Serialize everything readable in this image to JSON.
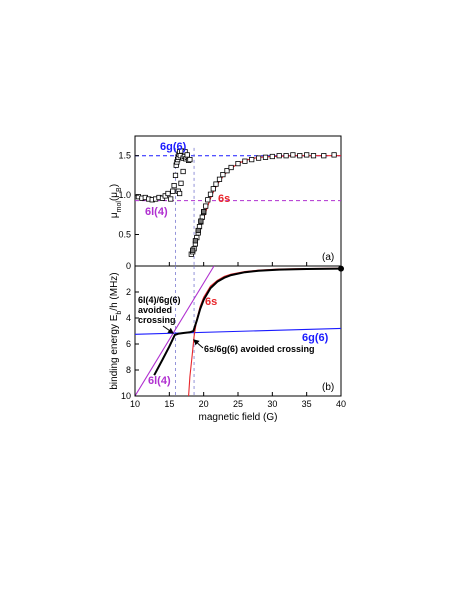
{
  "chart_data": [
    {
      "type": "scatter",
      "panel_label": "(a)",
      "ylabel_main": "μ",
      "ylabel_sub": "mol",
      "ylabel_unit": "(μ",
      "ylabel_unit_sub": "B",
      "ylabel_close": ")",
      "xlim": [
        10,
        40
      ],
      "ylim": [
        0.1,
        1.75
      ],
      "xticks": [
        10,
        15,
        20,
        25,
        30,
        35,
        40
      ],
      "yticks": [
        0.5,
        1.0,
        1.5
      ],
      "ytick_labels": [
        "0.5",
        "1.0",
        "1.5"
      ],
      "reference_lines": [
        {
          "label": "6g(6)",
          "y": 1.5,
          "color": "#1a1aff"
        },
        {
          "label": "6l(4)",
          "y": 0.93,
          "color": "#b030d0"
        }
      ],
      "vlines_x": [
        15.9,
        18.6
      ],
      "fit_curve": {
        "color": "#e8252a",
        "x": [
          18.1,
          18.3,
          18.6,
          19.0,
          19.5,
          20.0,
          20.5,
          21.0,
          21.5,
          22.0,
          23.0,
          24.0,
          25.0,
          26.0,
          27.0,
          28.0,
          30.0,
          33.0,
          36.0,
          40.0
        ],
        "y": [
          0.22,
          0.26,
          0.34,
          0.45,
          0.58,
          0.71,
          0.84,
          0.96,
          1.06,
          1.14,
          1.26,
          1.34,
          1.4,
          1.44,
          1.46,
          1.48,
          1.49,
          1.5,
          1.5,
          1.5
        ]
      },
      "series": [
        {
          "name": "6l(4)",
          "marker": "square-open",
          "x": [
            10.5,
            11.0,
            11.5,
            12.0,
            12.5,
            13.0,
            13.5,
            14.0,
            14.4,
            14.8,
            15.2,
            15.5,
            15.7,
            15.9,
            16.0,
            16.1,
            16.2,
            16.3,
            16.4,
            16.5,
            16.6,
            16.8,
            17.0,
            17.2,
            17.4,
            17.6,
            17.8,
            18.0,
            16.3,
            16.5,
            16.7,
            17.0,
            17.3,
            17.6
          ],
          "y": [
            0.98,
            0.96,
            0.97,
            0.95,
            0.94,
            0.95,
            0.97,
            0.96,
            0.99,
            1.02,
            0.95,
            1.05,
            1.12,
            1.25,
            1.38,
            1.42,
            1.45,
            1.48,
            1.52,
            1.55,
            1.5,
            1.56,
            1.47,
            1.49,
            1.46,
            1.48,
            1.44,
            1.45,
            1.05,
            1.02,
            1.15,
            1.3,
            1.55,
            1.51
          ]
        },
        {
          "name": "6s",
          "marker": "square-open",
          "x": [
            18.2,
            18.4,
            18.6,
            18.8,
            19.0,
            19.2,
            19.4,
            19.6,
            19.8,
            20.0,
            20.3,
            20.6,
            21.0,
            21.4,
            21.8,
            22.3,
            22.8,
            23.4,
            24.0,
            25.0,
            26.0,
            27.0,
            28.0,
            29.0,
            30.0,
            31.0,
            32.0,
            33.0,
            34.0,
            35.0,
            36.0,
            37.5,
            39.0
          ],
          "y": [
            0.25,
            0.28,
            0.32,
            0.38,
            0.46,
            0.52,
            0.6,
            0.66,
            0.72,
            0.78,
            0.86,
            0.94,
            1.01,
            1.08,
            1.14,
            1.2,
            1.26,
            1.31,
            1.35,
            1.4,
            1.43,
            1.45,
            1.47,
            1.48,
            1.49,
            1.5,
            1.5,
            1.51,
            1.5,
            1.51,
            1.5,
            1.5,
            1.51
          ]
        },
        {
          "name": "6s-filled",
          "marker": "square-filled",
          "x": [
            18.4,
            18.8,
            19.2,
            19.6,
            20.0
          ],
          "y": [
            0.3,
            0.42,
            0.55,
            0.67,
            0.79
          ]
        }
      ],
      "annotations": [
        {
          "text": "6g(6)",
          "color": "#1a1aff"
        },
        {
          "text": "6l(4)",
          "color": "#b030d0"
        },
        {
          "text": "6s",
          "color": "#e8252a"
        }
      ]
    },
    {
      "type": "line",
      "panel_label": "(b)",
      "xlabel": "magnetic field (G)",
      "ylabel_main": "binding energy E",
      "ylabel_sub": "b",
      "ylabel_unit": "/h (MHz)",
      "xlim": [
        10,
        40
      ],
      "ylim": [
        10,
        0
      ],
      "xticks": [
        10,
        15,
        20,
        25,
        30,
        35,
        40
      ],
      "yticks": [
        0,
        2,
        4,
        6,
        8,
        10
      ],
      "vlines_x": [
        15.9,
        18.6
      ],
      "series": [
        {
          "name": "6l(4)",
          "color": "#b030d0",
          "x": [
            10.0,
            21.5
          ],
          "y": [
            10.0,
            0.0
          ]
        },
        {
          "name": "6g(6)",
          "color": "#1a1aff",
          "x": [
            10.0,
            40.0
          ],
          "y": [
            5.25,
            4.8
          ]
        },
        {
          "name": "6s",
          "color": "#e8252a",
          "x": [
            17.8,
            18.0,
            18.3,
            18.6,
            19.0,
            19.5,
            20.0,
            21.0,
            22.0,
            23.0,
            24.0,
            26.0,
            28.0,
            31.0,
            35.0,
            40.0
          ],
          "y": [
            10.0,
            8.5,
            7.0,
            5.4,
            4.1,
            3.1,
            2.4,
            1.55,
            1.1,
            0.8,
            0.62,
            0.42,
            0.32,
            0.24,
            0.2,
            0.18
          ]
        },
        {
          "name": "bound-state",
          "color": "#000000",
          "x": [
            12.8,
            14.0,
            15.0,
            15.8,
            16.4,
            17.2,
            18.0,
            18.5,
            19.0,
            19.5,
            20.0,
            21.0,
            22.0,
            23.0,
            24.0,
            26.0,
            28.0,
            31.0,
            35.0,
            40.0
          ],
          "y": [
            8.4,
            7.2,
            6.2,
            5.3,
            5.2,
            5.15,
            5.1,
            5.0,
            4.2,
            3.3,
            2.6,
            1.7,
            1.2,
            0.9,
            0.7,
            0.48,
            0.37,
            0.28,
            0.23,
            0.2
          ]
        }
      ],
      "endpoint": {
        "x": 40,
        "y": 0.2
      },
      "annotations": [
        {
          "text": "6s",
          "color": "#e8252a"
        },
        {
          "text": "6g(6)",
          "color": "#1a1aff"
        },
        {
          "text": "6l(4)",
          "color": "#b030d0"
        },
        {
          "text_lines": [
            "6l(4)/6g(6)",
            "avoided",
            "crossing"
          ],
          "color": "#000000"
        },
        {
          "text": "6s/6g(6) avoided crossing",
          "color": "#000000"
        }
      ]
    }
  ]
}
